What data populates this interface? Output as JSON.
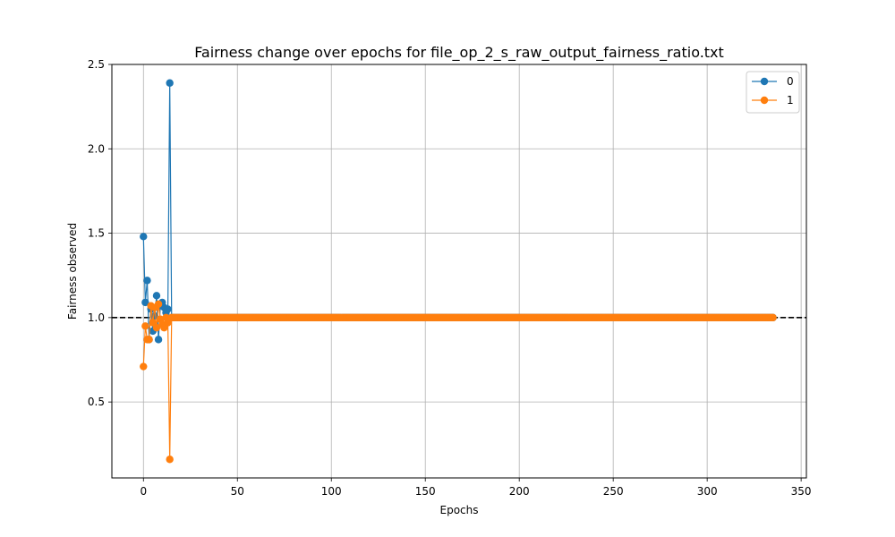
{
  "chart_data": {
    "type": "line",
    "title": "Fairness change over epochs for file_op_2_s_raw_output_fairness_ratio.txt",
    "xlabel": "Epochs",
    "ylabel": "Fairness observed",
    "xlim": [
      -16.8,
      352.8
    ],
    "ylim": [
      0.05,
      2.5
    ],
    "xticks": [
      0,
      50,
      100,
      150,
      200,
      250,
      300,
      350
    ],
    "yticks": [
      0.5,
      1.0,
      1.5,
      2.0,
      2.5
    ],
    "ytick_labels": [
      "0.5",
      "1.0",
      "1.5",
      "2.0",
      "2.5"
    ],
    "grid": true,
    "legend_position": "top-right",
    "reference_line": {
      "y": 1.0,
      "style": "dashed",
      "color": "#000000"
    },
    "series": [
      {
        "name": "0",
        "color": "#1f77b4",
        "x": [
          0,
          1,
          2,
          3,
          4,
          5,
          6,
          7,
          8,
          9,
          10,
          11,
          12,
          13,
          14
        ],
        "y": [
          1.48,
          1.09,
          1.22,
          0.87,
          1.05,
          0.92,
          1.01,
          1.13,
          0.87,
          1.07,
          1.09,
          1.06,
          1.03,
          1.05,
          2.39
        ],
        "tail": {
          "from": 14,
          "to": 335,
          "value": 1.0
        }
      },
      {
        "name": "1",
        "color": "#ff7f0e",
        "x": [
          0,
          1,
          2,
          3,
          4,
          5,
          6,
          7,
          8,
          9,
          10,
          11,
          12,
          13,
          14
        ],
        "y": [
          0.71,
          0.95,
          0.87,
          0.87,
          1.07,
          0.97,
          1.06,
          0.94,
          1.08,
          0.99,
          0.96,
          0.94,
          1.0,
          0.97,
          0.16
        ],
        "tail": {
          "from": 14,
          "to": 335,
          "value": 1.0
        }
      }
    ]
  }
}
